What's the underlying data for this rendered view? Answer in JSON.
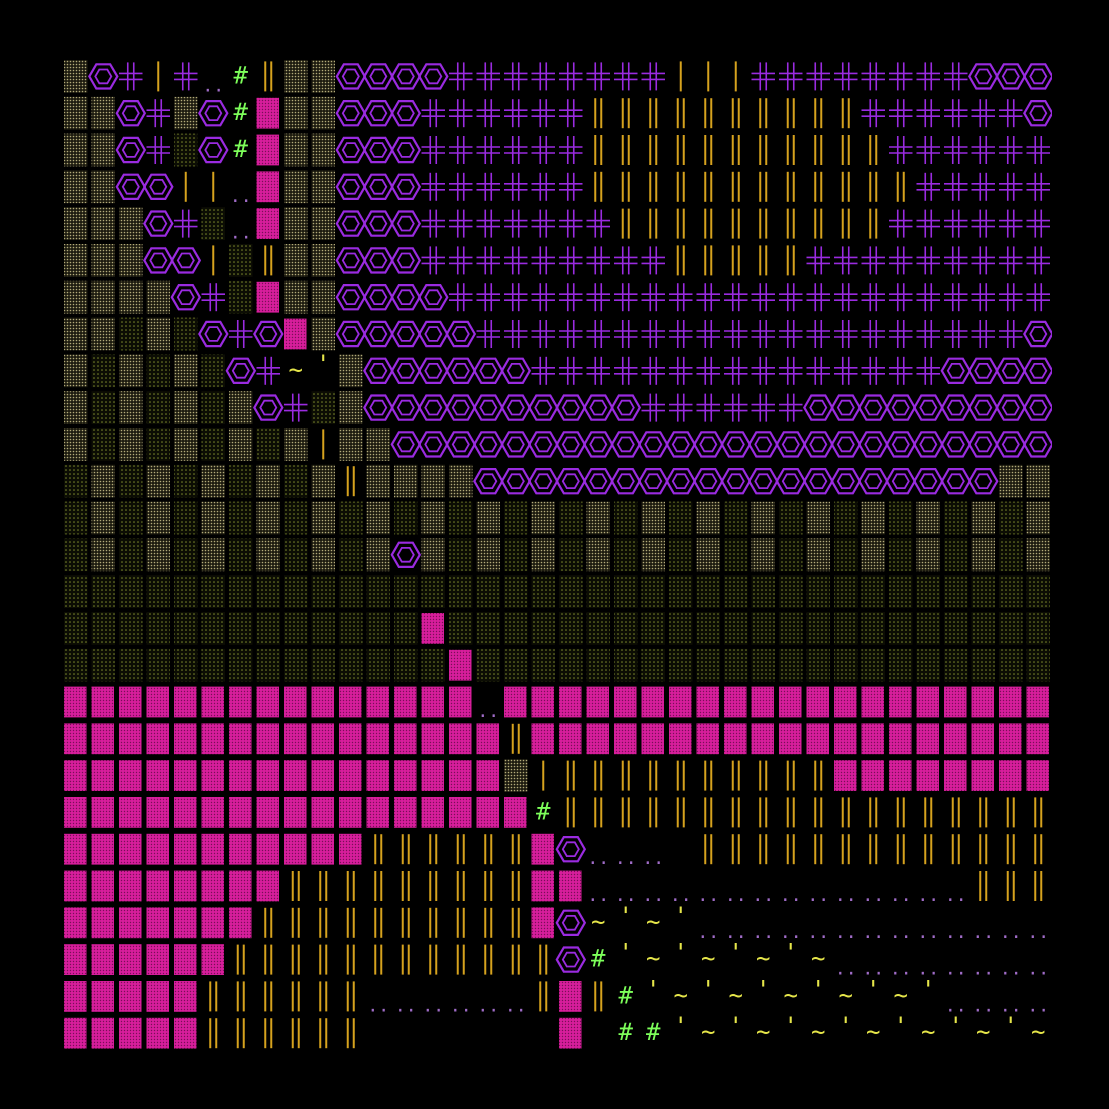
{
  "glyphs": {
    "hash": "#",
    "tilde": "~",
    "quote": "'",
    "dots": ".."
  }
}
